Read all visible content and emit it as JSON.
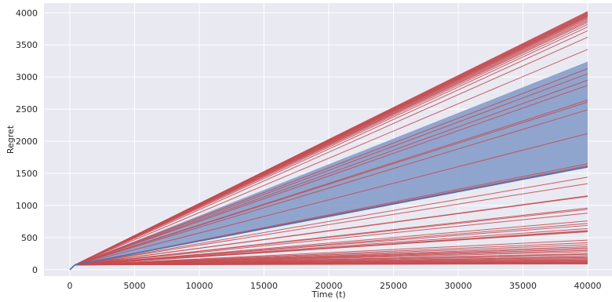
{
  "chart_data": {
    "type": "line",
    "title": "",
    "xlabel": "Time (t)",
    "ylabel": "Regret",
    "xlim": [
      -2000,
      42000
    ],
    "ylim": [
      -100,
      4150
    ],
    "xticks": [
      0,
      5000,
      10000,
      15000,
      20000,
      25000,
      30000,
      35000,
      40000
    ],
    "yticks": [
      0,
      500,
      1000,
      1500,
      2000,
      2500,
      3000,
      3500,
      4000
    ],
    "grid": true,
    "background": "#e9e9f1",
    "colors": {
      "runs": "#c44e52",
      "mean": "#4c72b0",
      "band": "#7f99c8"
    },
    "run_start": {
      "x": 400,
      "y": 75
    },
    "runs_final_regret": [
      4020,
      4010,
      4000,
      3990,
      3980,
      3970,
      3960,
      3950,
      3940,
      3925,
      3910,
      3890,
      3870,
      3850,
      3820,
      3780,
      3720,
      3620,
      3430,
      3130,
      3050,
      2950,
      2870,
      2640,
      2610,
      2490,
      2120,
      1650,
      1620,
      1440,
      1340,
      1150,
      1140,
      960,
      940,
      880,
      760,
      720,
      690,
      640,
      610,
      600,
      590,
      460,
      420,
      390,
      360,
      340,
      320,
      300,
      280,
      250,
      240,
      220,
      200,
      190,
      175,
      160,
      150,
      140,
      130,
      120,
      115,
      110,
      105,
      100,
      95,
      90
    ],
    "mean_series": {
      "x": [
        0,
        400,
        40000
      ],
      "y": [
        0,
        75,
        1600
      ]
    },
    "band_series": {
      "x": [
        0,
        400,
        40000
      ],
      "lower": [
        0,
        75,
        1590
      ],
      "upper": [
        0,
        75,
        3240
      ]
    }
  }
}
